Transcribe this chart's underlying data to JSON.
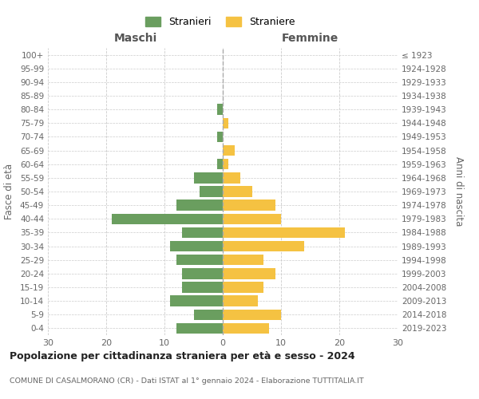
{
  "age_groups_bottom_to_top": [
    "0-4",
    "5-9",
    "10-14",
    "15-19",
    "20-24",
    "25-29",
    "30-34",
    "35-39",
    "40-44",
    "45-49",
    "50-54",
    "55-59",
    "60-64",
    "65-69",
    "70-74",
    "75-79",
    "80-84",
    "85-89",
    "90-94",
    "95-99",
    "100+"
  ],
  "birth_years_bottom_to_top": [
    "2019-2023",
    "2014-2018",
    "2009-2013",
    "2004-2008",
    "1999-2003",
    "1994-1998",
    "1989-1993",
    "1984-1988",
    "1979-1983",
    "1974-1978",
    "1969-1973",
    "1964-1968",
    "1959-1963",
    "1954-1958",
    "1949-1953",
    "1944-1948",
    "1939-1943",
    "1934-1938",
    "1929-1933",
    "1924-1928",
    "≤ 1923"
  ],
  "males_bottom_to_top": [
    8,
    5,
    9,
    7,
    7,
    8,
    9,
    7,
    19,
    8,
    4,
    5,
    1,
    0,
    1,
    0,
    1,
    0,
    0,
    0,
    0
  ],
  "females_bottom_to_top": [
    8,
    10,
    6,
    7,
    9,
    7,
    14,
    21,
    10,
    9,
    5,
    3,
    1,
    2,
    0,
    1,
    0,
    0,
    0,
    0,
    0
  ],
  "male_color": "#6a9e5f",
  "female_color": "#f5c242",
  "male_label": "Stranieri",
  "female_label": "Straniere",
  "title": "Popolazione per cittadinanza straniera per età e sesso - 2024",
  "subtitle": "COMUNE DI CASALMORANO (CR) - Dati ISTAT al 1° gennaio 2024 - Elaborazione TUTTITALIA.IT",
  "xlabel_left": "Maschi",
  "xlabel_right": "Femmine",
  "ylabel_left": "Fasce di età",
  "ylabel_right": "Anni di nascita",
  "xlim": 30,
  "background_color": "#ffffff",
  "grid_color": "#cccccc"
}
